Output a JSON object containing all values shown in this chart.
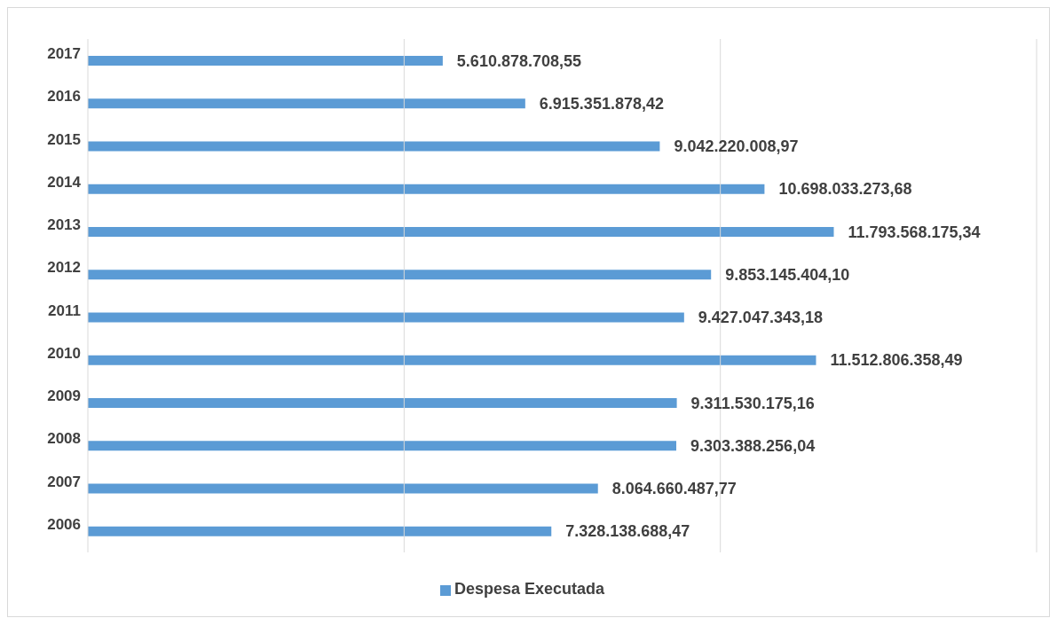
{
  "chart_data": {
    "type": "bar",
    "orientation": "horizontal",
    "categories": [
      "2017",
      "2016",
      "2015",
      "2014",
      "2013",
      "2012",
      "2011",
      "2010",
      "2009",
      "2008",
      "2007",
      "2006"
    ],
    "series": [
      {
        "name": "Despesa Executada",
        "color": "#5b9bd5",
        "values": [
          5610878708.55,
          6915351878.42,
          9042220008.97,
          10698033273.68,
          11793568175.34,
          9853145404.1,
          9427047343.18,
          11512806358.49,
          9311530175.16,
          9303388256.04,
          8064660487.77,
          7328138688.47
        ],
        "value_labels": [
          "5.610.878.708,55",
          "6.915.351.878,42",
          "9.042.220.008,97",
          "10.698.033.273,68",
          "11.793.568.175,34",
          "9.853.145.404,10",
          "9.427.047.343,18",
          "11.512.806.358,49",
          "9.311.530.175,16",
          "9.303.388.256,04",
          "8.064.660.487,77",
          "7.328.138.688,47"
        ]
      }
    ],
    "xlim": [
      0,
      15000000000
    ],
    "xticks": [
      {
        "value": 0,
        "label": null
      },
      {
        "value": 5000000000,
        "label": null
      },
      {
        "value": 10000000000,
        "label": null
      },
      {
        "value": 15000000000,
        "label": null
      }
    ],
    "tick_labels": "y",
    "grid": "x",
    "legend": "bottom"
  }
}
